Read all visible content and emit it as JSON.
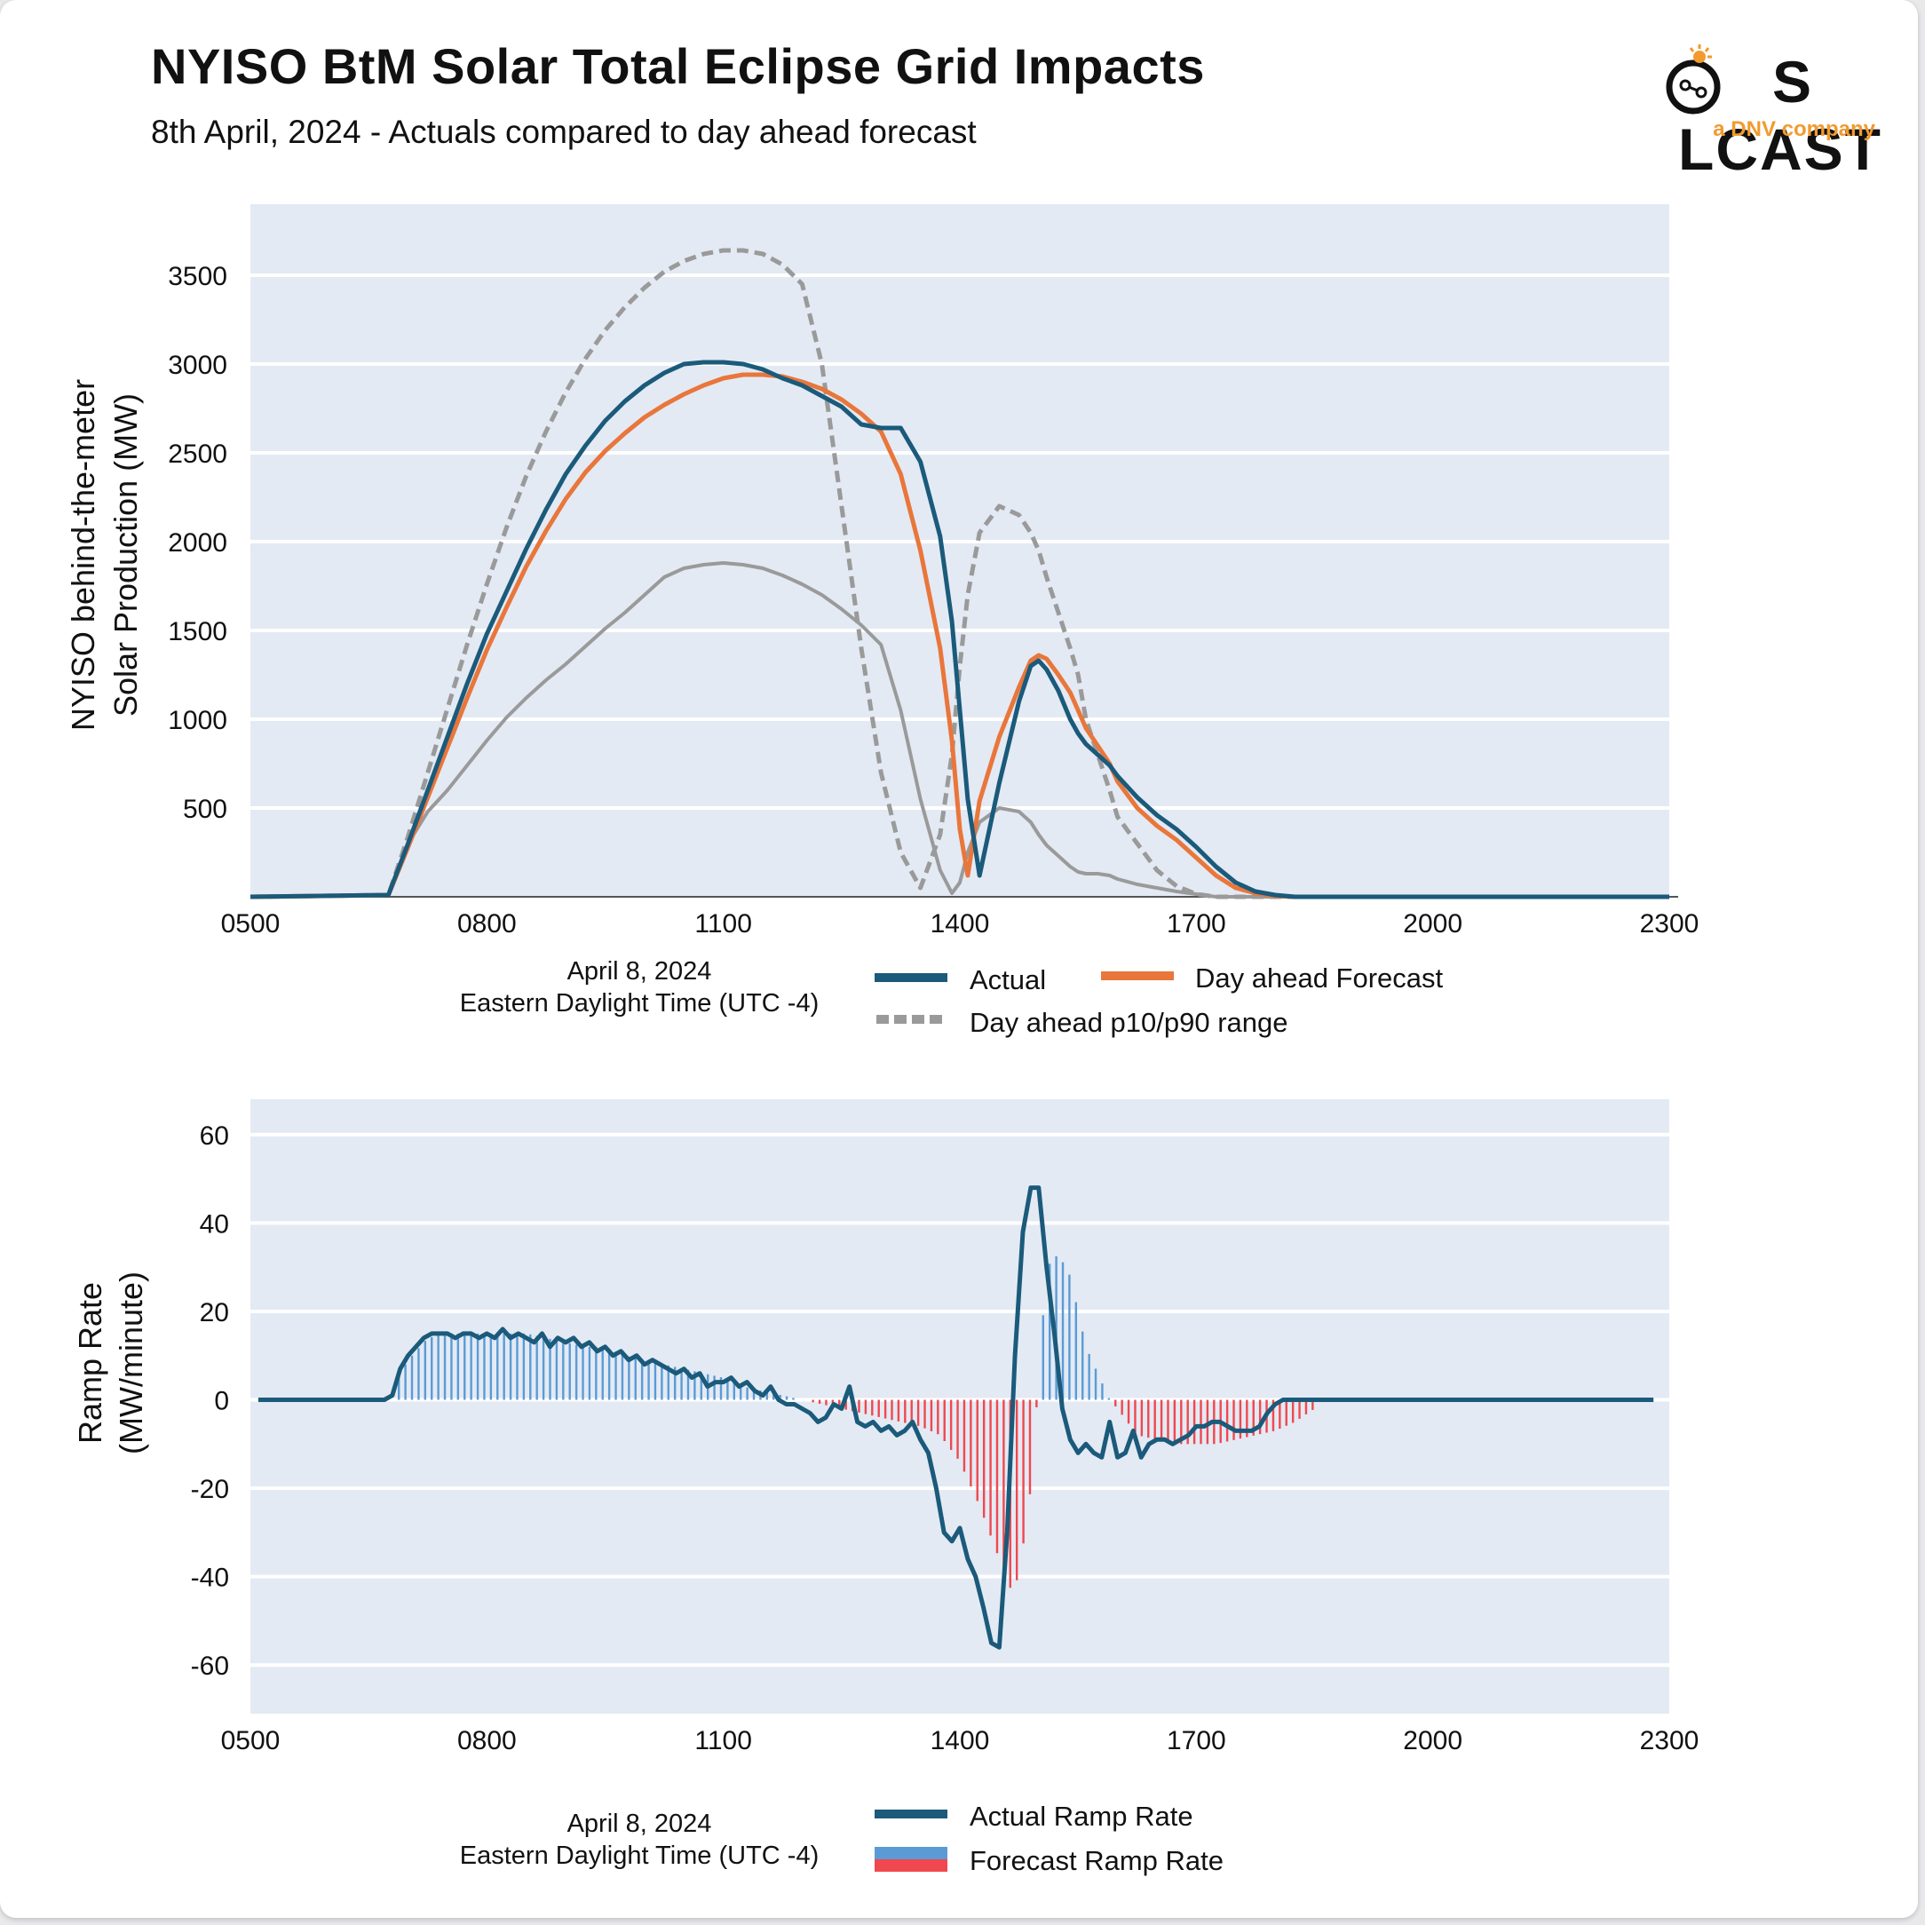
{
  "header": {
    "title": "NYISO BtM Solar Total Eclipse Grid Impacts",
    "subtitle": "8th April, 2024 - Actuals compared to day ahead forecast"
  },
  "logo": {
    "wordmark_left": "S",
    "wordmark_right": "LCAST",
    "tagline": "a DNV company"
  },
  "colors": {
    "plot_bg": "#e3eaf4",
    "actual": "#1b5a7a",
    "forecast": "#e9763b",
    "range": "#9a9a9a",
    "ramp_pos": "#5b9bd5",
    "ramp_neg": "#f0484e",
    "logo_accent": "#f29a2e"
  },
  "chart_data": [
    {
      "type": "line",
      "title": "NYISO behind-the-meter solar production",
      "ylabel": [
        "NYISO behind-the-meter",
        "Solar Production (MW)"
      ],
      "x_note": [
        "April 8, 2024",
        "Eastern Daylight Time (UTC -4)"
      ],
      "xlim": [
        5,
        23
      ],
      "ylim": [
        0,
        3900
      ],
      "xtick_values": [
        5,
        8,
        11,
        14,
        17,
        20,
        23
      ],
      "xtick_labels": [
        "0500",
        "0800",
        "1100",
        "1400",
        "1700",
        "2000",
        "2300"
      ],
      "ytick_values": [
        500,
        1000,
        1500,
        2000,
        2500,
        3000,
        3500
      ],
      "ytick_labels": [
        "500",
        "1000",
        "1500",
        "2000",
        "2500",
        "3000",
        "3500"
      ],
      "legend": {
        "actual": "Actual",
        "forecast": "Day ahead Forecast",
        "range": "Day ahead p10/p90 range"
      },
      "series": [
        {
          "name": "Actual",
          "x": [
            5,
            6.75,
            7,
            7.25,
            7.5,
            7.75,
            8,
            8.25,
            8.5,
            8.75,
            9,
            9.25,
            9.5,
            9.75,
            10,
            10.25,
            10.5,
            10.75,
            11,
            11.25,
            11.5,
            11.75,
            12,
            12.25,
            12.5,
            12.75,
            13,
            13.25,
            13.5,
            13.75,
            13.9,
            14,
            14.1,
            14.25,
            14.5,
            14.75,
            14.9,
            15,
            15.1,
            15.25,
            15.4,
            15.5,
            15.6,
            15.75,
            15.9,
            16,
            16.25,
            16.5,
            16.75,
            17,
            17.25,
            17.5,
            17.75,
            18,
            18.25,
            18.5,
            18.75,
            19,
            23
          ],
          "values": [
            0,
            10,
            300,
            600,
            900,
            1200,
            1480,
            1720,
            1960,
            2180,
            2380,
            2540,
            2680,
            2790,
            2880,
            2950,
            3000,
            3010,
            3010,
            3000,
            2970,
            2920,
            2880,
            2820,
            2760,
            2660,
            2640,
            2640,
            2450,
            2030,
            1550,
            1050,
            550,
            120,
            640,
            1100,
            1300,
            1330,
            1280,
            1160,
            1000,
            920,
            860,
            800,
            740,
            680,
            560,
            460,
            380,
            280,
            170,
            80,
            30,
            10,
            0,
            0,
            0,
            0,
            0
          ]
        },
        {
          "name": "Day ahead Forecast",
          "x": [
            5,
            6.75,
            7,
            7.25,
            7.5,
            7.75,
            8,
            8.25,
            8.5,
            8.75,
            9,
            9.25,
            9.5,
            9.75,
            10,
            10.25,
            10.5,
            10.75,
            11,
            11.25,
            11.5,
            11.75,
            12,
            12.25,
            12.5,
            12.75,
            13,
            13.25,
            13.5,
            13.75,
            13.9,
            14,
            14.1,
            14.25,
            14.5,
            14.75,
            14.9,
            15,
            15.1,
            15.25,
            15.4,
            15.5,
            15.6,
            15.75,
            15.9,
            16,
            16.25,
            16.5,
            16.75,
            17,
            17.25,
            17.5,
            17.75,
            18,
            18.25,
            18.5,
            18.75,
            19,
            23
          ],
          "values": [
            0,
            10,
            280,
            560,
            840,
            1120,
            1390,
            1630,
            1860,
            2060,
            2240,
            2390,
            2510,
            2610,
            2700,
            2770,
            2830,
            2880,
            2920,
            2940,
            2940,
            2930,
            2900,
            2860,
            2800,
            2720,
            2620,
            2380,
            1950,
            1400,
            880,
            380,
            120,
            540,
            900,
            1180,
            1330,
            1360,
            1340,
            1250,
            1150,
            1050,
            950,
            850,
            750,
            650,
            500,
            400,
            320,
            220,
            120,
            50,
            20,
            5,
            0,
            0,
            0,
            0,
            0
          ]
        },
        {
          "name": "Day ahead p90",
          "x": [
            5,
            6.75,
            7,
            7.25,
            7.5,
            7.75,
            8,
            8.25,
            8.5,
            8.75,
            9,
            9.25,
            9.5,
            9.75,
            10,
            10.25,
            10.5,
            10.75,
            11,
            11.25,
            11.5,
            11.75,
            12,
            12.25,
            12.5,
            12.75,
            13,
            13.25,
            13.5,
            13.75,
            13.9,
            14,
            14.1,
            14.25,
            14.5,
            14.75,
            14.9,
            15,
            15.1,
            15.25,
            15.4,
            15.5,
            15.6,
            15.75,
            15.9,
            16,
            16.25,
            16.5,
            16.75,
            17,
            17.25,
            17.5,
            17.75,
            18,
            18.25,
            18.5,
            18.75,
            19,
            23
          ],
          "values": [
            0,
            10,
            340,
            700,
            1060,
            1420,
            1760,
            2080,
            2370,
            2620,
            2840,
            3030,
            3190,
            3320,
            3430,
            3520,
            3580,
            3620,
            3640,
            3640,
            3620,
            3560,
            3450,
            3000,
            2200,
            1400,
            700,
            250,
            50,
            350,
            800,
            1300,
            1700,
            2050,
            2200,
            2150,
            2050,
            1950,
            1800,
            1600,
            1400,
            1250,
            1000,
            800,
            600,
            450,
            300,
            150,
            60,
            15,
            0,
            0,
            0,
            0,
            0,
            0,
            0,
            0,
            0
          ]
        },
        {
          "name": "Day ahead p10",
          "x": [
            5,
            6.75,
            7,
            7.25,
            7.5,
            7.75,
            8,
            8.25,
            8.5,
            8.75,
            9,
            9.25,
            9.5,
            9.75,
            10,
            10.25,
            10.5,
            10.75,
            11,
            11.25,
            11.5,
            11.75,
            12,
            12.25,
            12.5,
            12.75,
            13,
            13.25,
            13.5,
            13.75,
            13.9,
            14,
            14.1,
            14.25,
            14.5,
            14.75,
            14.9,
            15,
            15.1,
            15.25,
            15.4,
            15.5,
            15.6,
            15.75,
            15.9,
            16,
            16.25,
            16.5,
            16.75,
            17,
            17.25,
            17.5,
            17.75,
            18,
            18.25,
            18.5,
            18.75,
            19,
            23
          ],
          "values": [
            0,
            10,
            300,
            480,
            600,
            740,
            880,
            1010,
            1120,
            1220,
            1310,
            1410,
            1510,
            1600,
            1700,
            1800,
            1850,
            1870,
            1880,
            1870,
            1850,
            1810,
            1760,
            1700,
            1620,
            1530,
            1420,
            1050,
            550,
            150,
            20,
            80,
            250,
            420,
            500,
            480,
            420,
            350,
            290,
            230,
            170,
            140,
            130,
            130,
            120,
            100,
            70,
            50,
            30,
            15,
            0,
            0,
            0,
            0,
            0,
            0,
            0,
            0,
            0
          ]
        }
      ]
    },
    {
      "type": "line+bar",
      "title": "Ramp rate",
      "ylabel": [
        "Ramp Rate",
        "(MW/minute)"
      ],
      "x_note": [
        "April 8, 2024",
        "Eastern Daylight Time (UTC -4)"
      ],
      "xlim": [
        5,
        23
      ],
      "ylim": [
        -71,
        68
      ],
      "xtick_values": [
        5,
        8,
        11,
        14,
        17,
        20,
        23
      ],
      "xtick_labels": [
        "0500",
        "0800",
        "1100",
        "1400",
        "1700",
        "2000",
        "2300"
      ],
      "ytick_values": [
        60,
        40,
        20,
        0,
        -20,
        -40,
        -60
      ],
      "ytick_labels": [
        "60",
        "40",
        "20",
        "0",
        "-20",
        "-40",
        "-60"
      ],
      "legend": {
        "actual": "Actual Ramp Rate",
        "forecast": "Forecast Ramp Rate"
      },
      "series": [
        {
          "name": "Actual Ramp Rate",
          "x": [
            5.1,
            6.7,
            6.8,
            6.9,
            7.0,
            7.1,
            7.2,
            7.3,
            7.4,
            7.5,
            7.6,
            7.7,
            7.8,
            7.9,
            8.0,
            8.1,
            8.2,
            8.3,
            8.4,
            8.5,
            8.6,
            8.7,
            8.8,
            8.9,
            9.0,
            9.1,
            9.2,
            9.3,
            9.4,
            9.5,
            9.6,
            9.7,
            9.8,
            9.9,
            10.0,
            10.1,
            10.2,
            10.3,
            10.4,
            10.5,
            10.6,
            10.7,
            10.8,
            10.9,
            11.0,
            11.1,
            11.2,
            11.3,
            11.4,
            11.5,
            11.6,
            11.7,
            11.8,
            11.9,
            12.0,
            12.1,
            12.2,
            12.3,
            12.4,
            12.5,
            12.6,
            12.7,
            12.8,
            12.9,
            13.0,
            13.1,
            13.2,
            13.3,
            13.4,
            13.5,
            13.6,
            13.7,
            13.8,
            13.9,
            14.0,
            14.1,
            14.2,
            14.3,
            14.4,
            14.5,
            14.6,
            14.7,
            14.8,
            14.9,
            15.0,
            15.1,
            15.2,
            15.3,
            15.4,
            15.5,
            15.6,
            15.7,
            15.8,
            15.9,
            16.0,
            16.1,
            16.2,
            16.3,
            16.4,
            16.5,
            16.6,
            16.7,
            16.8,
            16.9,
            17.0,
            17.1,
            17.2,
            17.3,
            17.4,
            17.5,
            17.6,
            17.7,
            17.8,
            17.9,
            18.0,
            18.1,
            18.2,
            18.3,
            18.4,
            18.5,
            18.6,
            18.7,
            22.8
          ],
          "values": [
            0,
            0,
            1,
            7,
            10,
            12,
            14,
            15,
            15,
            15,
            14,
            15,
            15,
            14,
            15,
            14,
            16,
            14,
            15,
            14,
            13,
            15,
            12,
            14,
            13,
            14,
            12,
            13,
            11,
            12,
            10,
            11,
            9,
            10,
            8,
            9,
            8,
            7,
            6,
            7,
            5,
            6,
            3,
            4,
            4,
            5,
            3,
            4,
            2,
            1,
            3,
            0,
            -1,
            -1,
            -2,
            -3,
            -5,
            -4,
            -1,
            -2,
            3,
            -5,
            -6,
            -5,
            -7,
            -6,
            -8,
            -7,
            -5,
            -9,
            -12,
            -20,
            -30,
            -32,
            -29,
            -36,
            -40,
            -47,
            -55,
            -56,
            -30,
            10,
            38,
            48,
            48,
            30,
            15,
            -2,
            -9,
            -12,
            -10,
            -12,
            -13,
            -5,
            -13,
            -12,
            -7,
            -13,
            -10,
            -9,
            -9,
            -10,
            -9,
            -8,
            -6,
            -6,
            -5,
            -5,
            -6,
            -7,
            -7,
            -7,
            -6,
            -3,
            -1,
            0,
            0,
            0,
            0,
            0,
            0,
            0,
            0
          ]
        },
        {
          "name": "Forecast Ramp Rate",
          "x": [
            6.8,
            7.0,
            7.25,
            7.5,
            7.75,
            8.0,
            8.25,
            8.5,
            8.75,
            9.0,
            9.25,
            9.5,
            9.75,
            10.0,
            10.25,
            10.5,
            10.75,
            11.0,
            11.25,
            11.5,
            11.75,
            12.0,
            12.25,
            12.5,
            12.75,
            13.0,
            13.25,
            13.5,
            13.75,
            14.0,
            14.25,
            14.5,
            14.65,
            14.75,
            14.9,
            15.0,
            15.1,
            15.25,
            15.4,
            15.5,
            15.6,
            15.75,
            15.9,
            16.0,
            16.25,
            16.5,
            16.75,
            17.0,
            17.25,
            17.5,
            17.75,
            18.0,
            18.25,
            18.5
          ],
          "values": [
            3,
            9,
            14,
            15,
            15,
            15,
            15,
            15,
            14,
            13,
            12,
            12,
            10,
            9,
            8,
            7,
            6,
            5,
            3,
            2,
            1,
            0,
            -1,
            -2,
            -3,
            -4,
            -5,
            -6,
            -8,
            -14,
            -24,
            -36,
            -43,
            -40,
            -20,
            5,
            30,
            33,
            28,
            20,
            12,
            6,
            0,
            -2,
            -8,
            -9,
            -10,
            -10,
            -10,
            -9,
            -8,
            -7,
            -5,
            -2
          ]
        }
      ]
    }
  ]
}
